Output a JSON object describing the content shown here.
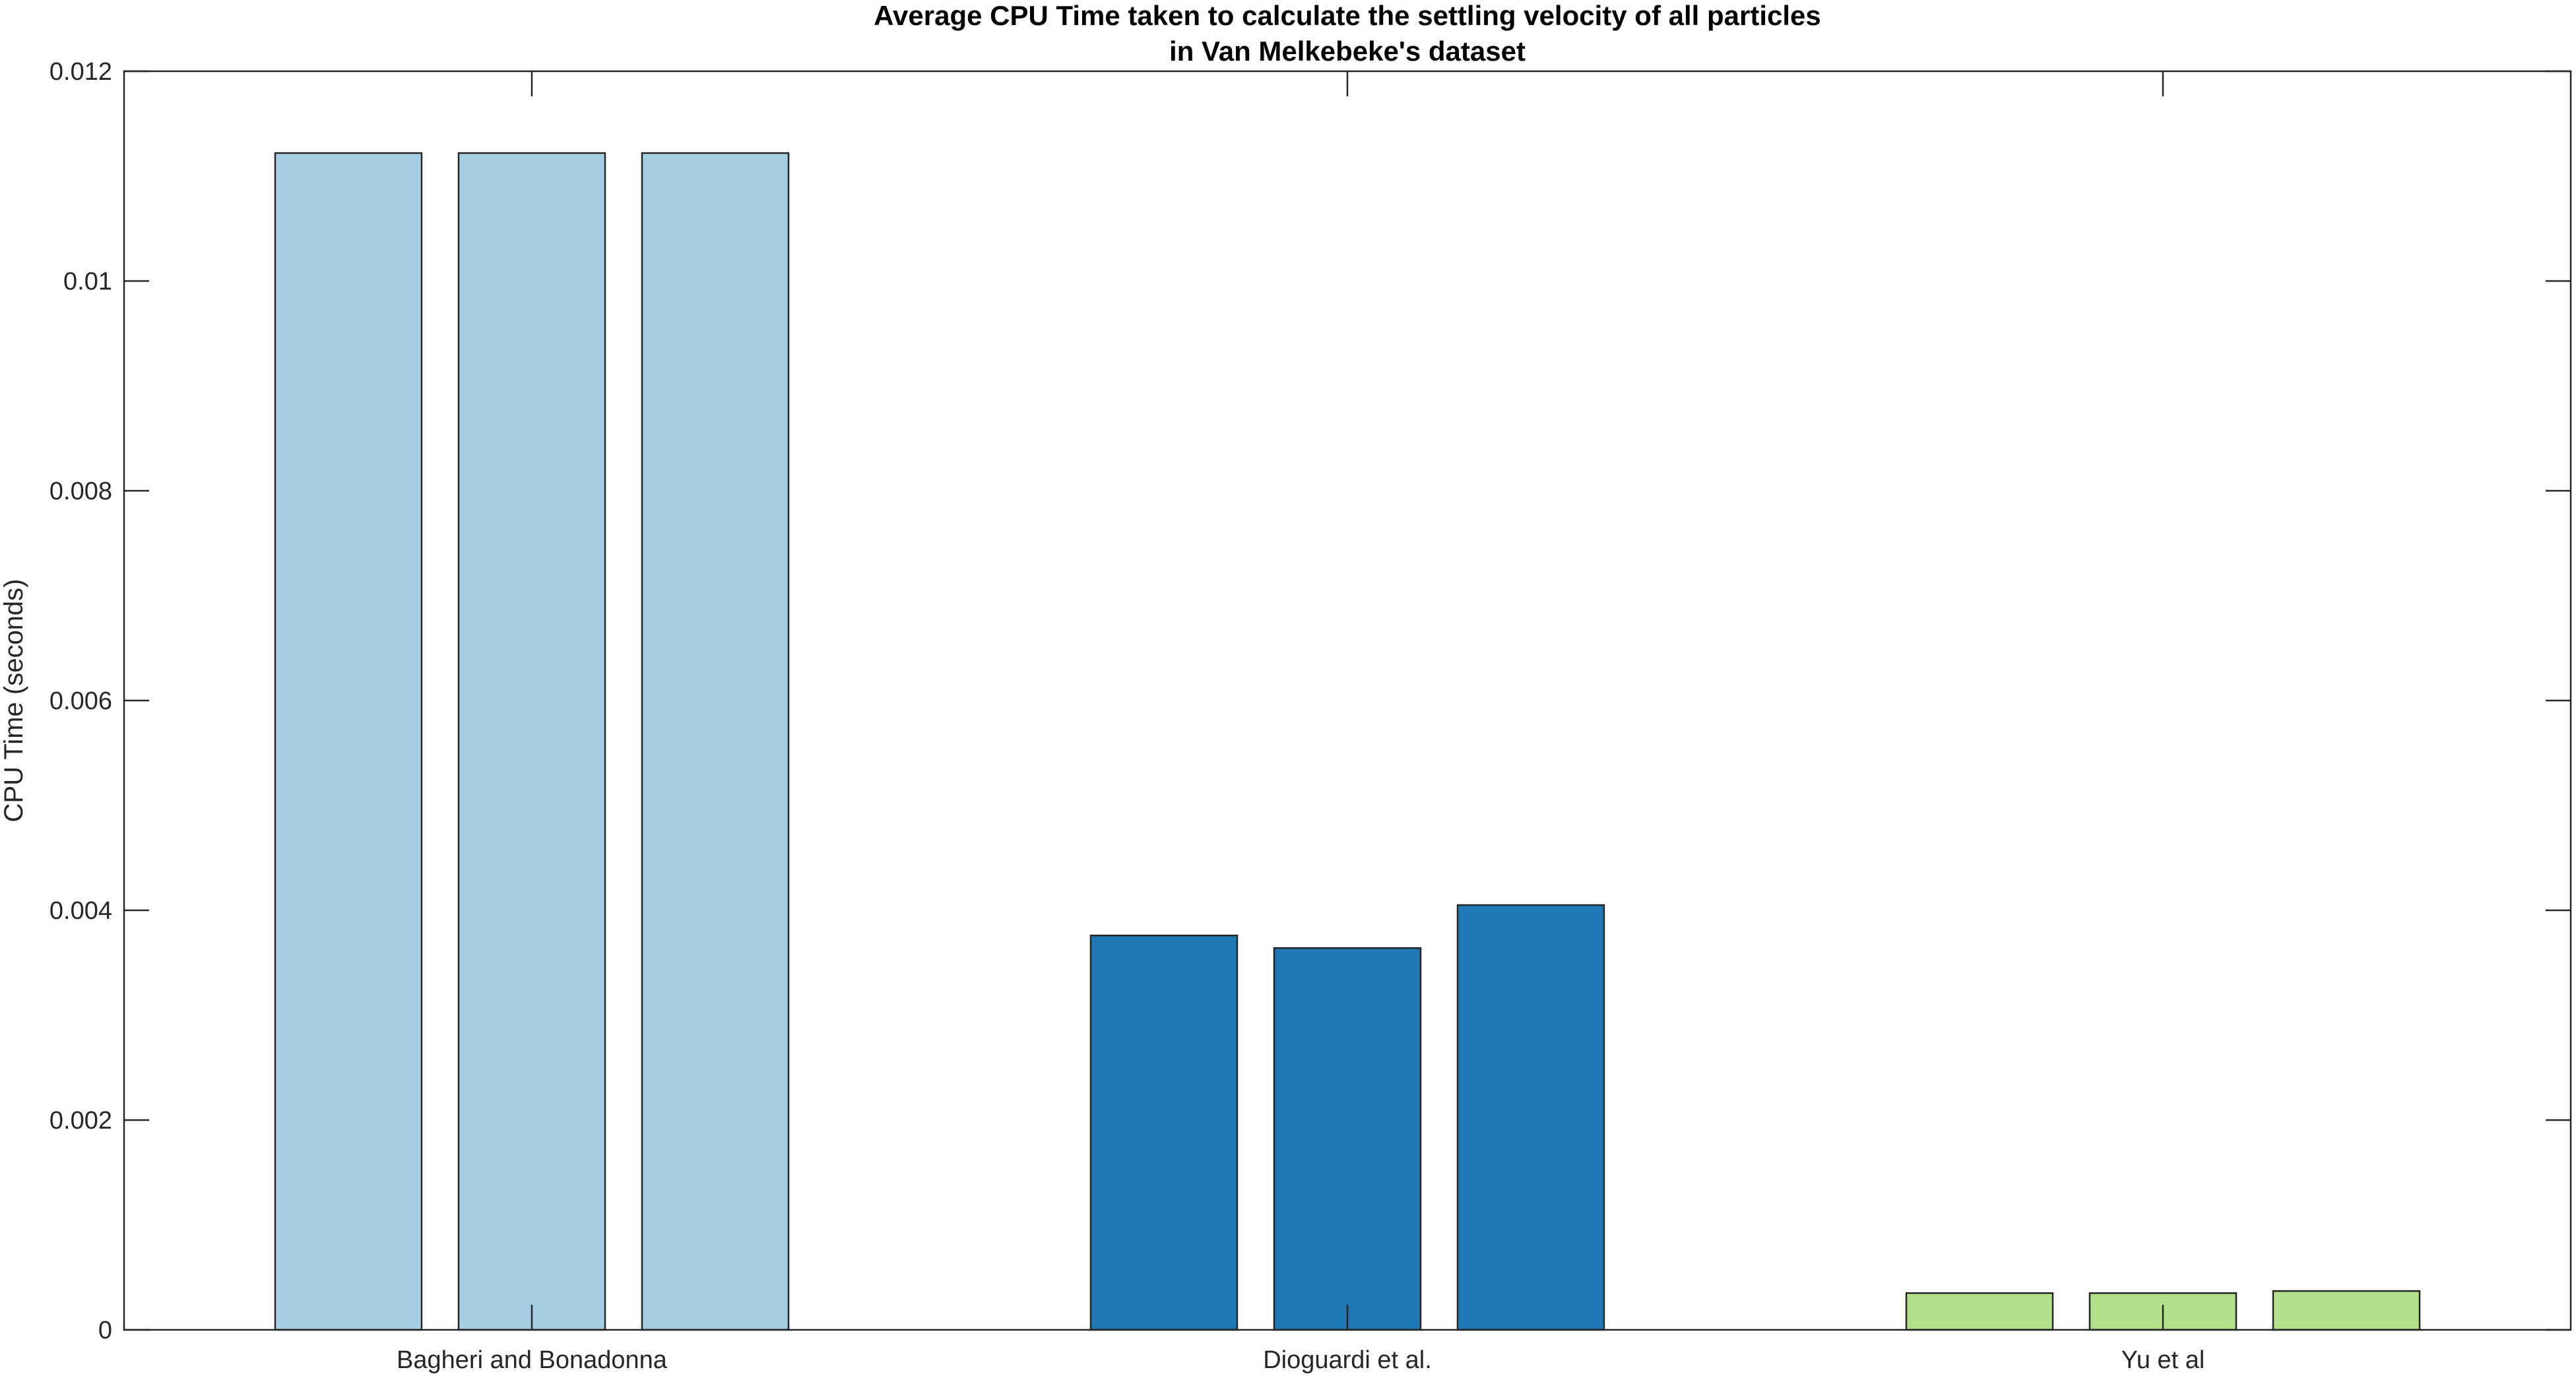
{
  "chart_data": {
    "type": "bar",
    "title_lines": [
      "Average CPU Time taken to calculate the settling velocity of all particles",
      "in Van Melkebeke's dataset"
    ],
    "xlabel": "",
    "ylabel": "CPU Time (seconds)",
    "ylim": [
      0,
      0.012
    ],
    "yticks": [
      "0",
      "0.002",
      "0.004",
      "0.006",
      "0.008",
      "0.01",
      "0.012"
    ],
    "ytick_values": [
      0,
      0.002,
      0.004,
      0.006,
      0.008,
      0.01,
      0.012
    ],
    "categories": [
      "Bagheri and Bonadonna",
      "Dioguardi et al.",
      "Yu et al"
    ],
    "groups": [
      {
        "category": "Bagheri and Bonadonna",
        "values": [
          0.01122,
          0.01122,
          0.01122
        ],
        "color": "#a6cee3"
      },
      {
        "category": "Dioguardi et al.",
        "values": [
          0.00376,
          0.00364,
          0.00405
        ],
        "color": "#1f78b4"
      },
      {
        "category": "Yu et al",
        "values": [
          0.00035,
          0.00035,
          0.00037
        ],
        "color": "#b2df8a"
      }
    ],
    "bar_edge_color": "#262626",
    "axis_color": "#262626",
    "grid": false,
    "box": true
  }
}
